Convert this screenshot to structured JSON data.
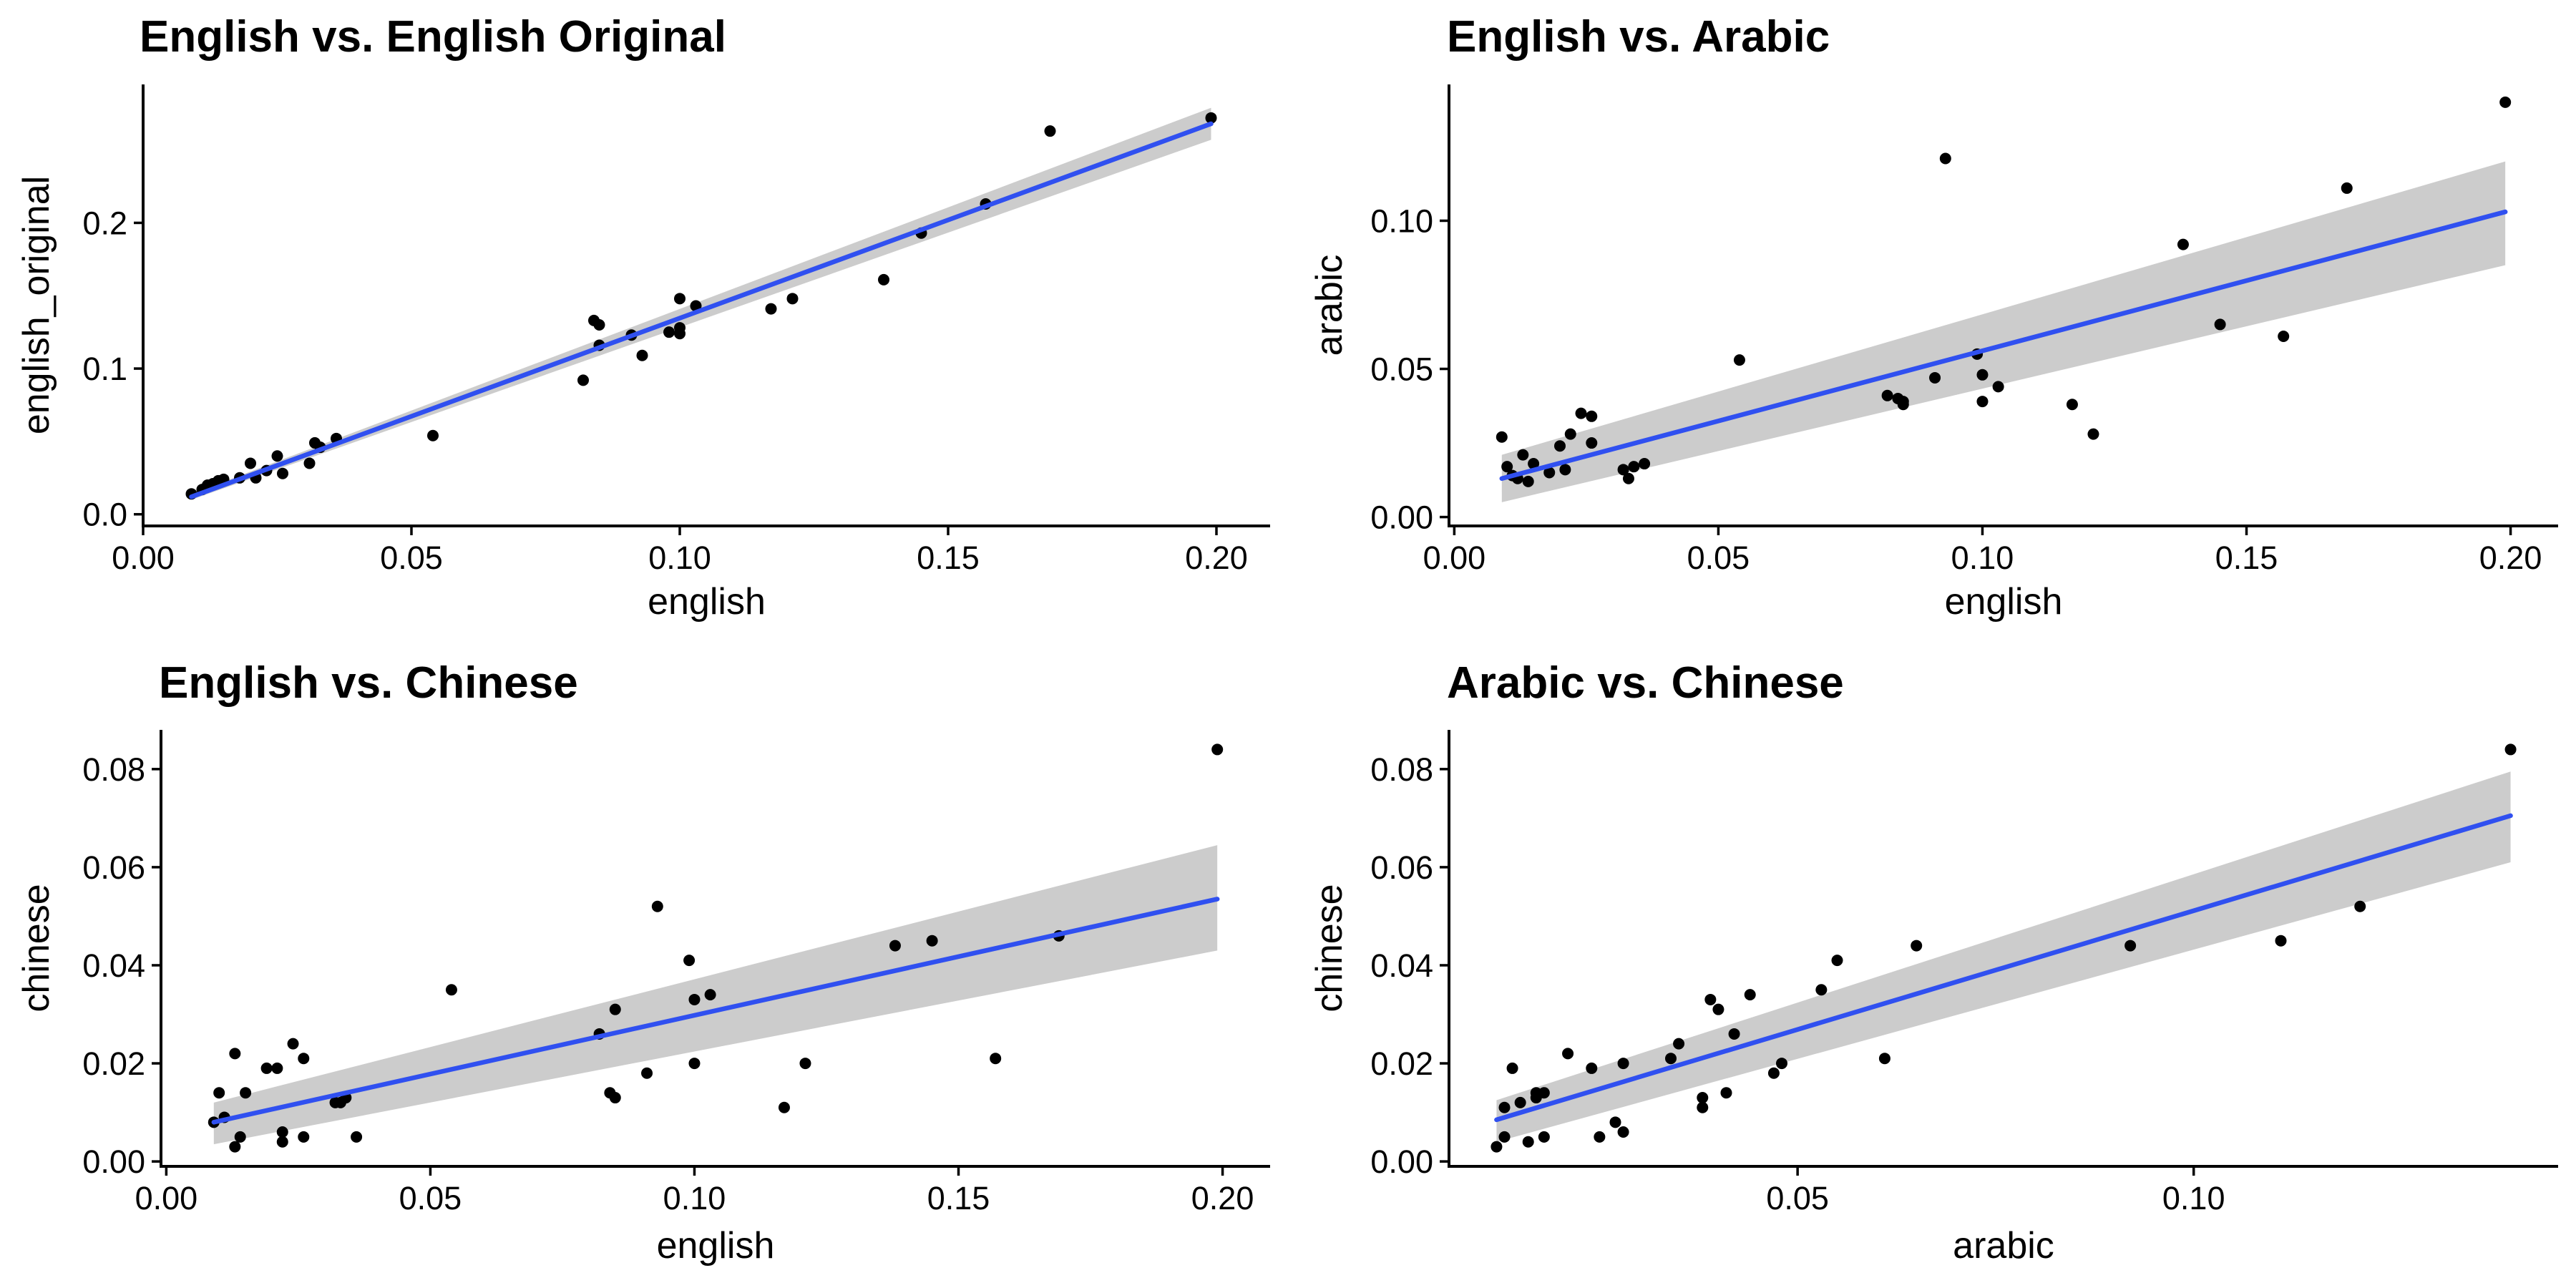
{
  "chart_data": [
    {
      "type": "scatter",
      "title": "English vs. English Original",
      "xlabel": "english",
      "ylabel": "english_original",
      "xlim": [
        0,
        0.21
      ],
      "ylim": [
        -0.008,
        0.295
      ],
      "xticks": [
        0,
        0.05,
        0.1,
        0.15,
        0.2
      ],
      "xtick_labels": [
        "0.00",
        "0.05",
        "0.10",
        "0.15",
        "0.20"
      ],
      "yticks": [
        0,
        0.1,
        0.2
      ],
      "ytick_labels": [
        "0.0",
        "0.1",
        "0.2"
      ],
      "fit": {
        "x0": 0.009,
        "y0": 0.012,
        "x1": 0.199,
        "y1": 0.268,
        "band_lo": [
          0.002,
          0.011
        ],
        "band_hi": [
          0.002,
          0.011
        ]
      },
      "points": {
        "x": [
          0.009,
          0.011,
          0.012,
          0.013,
          0.014,
          0.015,
          0.018,
          0.02,
          0.021,
          0.023,
          0.025,
          0.026,
          0.031,
          0.032,
          0.033,
          0.036,
          0.054,
          0.082,
          0.084,
          0.085,
          0.085,
          0.091,
          0.093,
          0.098,
          0.1,
          0.1,
          0.1,
          0.103,
          0.117,
          0.121,
          0.138,
          0.145,
          0.157,
          0.169,
          0.199
        ],
        "y": [
          0.014,
          0.017,
          0.02,
          0.021,
          0.023,
          0.024,
          0.025,
          0.035,
          0.025,
          0.03,
          0.04,
          0.028,
          0.035,
          0.049,
          0.046,
          0.052,
          0.054,
          0.092,
          0.133,
          0.116,
          0.13,
          0.123,
          0.109,
          0.125,
          0.148,
          0.128,
          0.124,
          0.143,
          0.141,
          0.148,
          0.161,
          0.193,
          0.213,
          0.263,
          0.272
        ]
      }
    },
    {
      "type": "scatter",
      "title": "English vs. Arabic",
      "xlabel": "english",
      "ylabel": "arabic",
      "xlim": [
        -0.001,
        0.209
      ],
      "ylim": [
        -0.003,
        0.146
      ],
      "xticks": [
        0,
        0.05,
        0.1,
        0.15,
        0.2
      ],
      "xtick_labels": [
        "0.00",
        "0.05",
        "0.10",
        "0.15",
        "0.20"
      ],
      "yticks": [
        0,
        0.05,
        0.1
      ],
      "ytick_labels": [
        "0.00",
        "0.05",
        "0.10"
      ],
      "fit": {
        "x0": 0.009,
        "y0": 0.013,
        "x1": 0.199,
        "y1": 0.103,
        "band_lo": [
          0.008,
          0.018
        ],
        "band_hi": [
          0.008,
          0.017
        ]
      },
      "points": {
        "x": [
          0.009,
          0.01,
          0.011,
          0.012,
          0.013,
          0.014,
          0.015,
          0.018,
          0.02,
          0.021,
          0.022,
          0.024,
          0.026,
          0.026,
          0.032,
          0.033,
          0.034,
          0.036,
          0.054,
          0.082,
          0.084,
          0.085,
          0.085,
          0.091,
          0.093,
          0.099,
          0.1,
          0.1,
          0.103,
          0.117,
          0.121,
          0.138,
          0.145,
          0.157,
          0.169,
          0.199
        ],
        "y": [
          0.027,
          0.017,
          0.014,
          0.013,
          0.021,
          0.012,
          0.018,
          0.015,
          0.024,
          0.016,
          0.028,
          0.035,
          0.025,
          0.034,
          0.016,
          0.013,
          0.017,
          0.018,
          0.053,
          0.041,
          0.04,
          0.038,
          0.039,
          0.047,
          0.121,
          0.055,
          0.048,
          0.039,
          0.044,
          0.038,
          0.028,
          0.092,
          0.065,
          0.061,
          0.111,
          0.14
        ]
      }
    },
    {
      "type": "scatter",
      "title": "English vs. Chinese",
      "xlabel": "english",
      "ylabel": "chinese",
      "xlim": [
        -0.001,
        0.209
      ],
      "ylim": [
        -0.001,
        0.088
      ],
      "xticks": [
        0,
        0.05,
        0.1,
        0.15,
        0.2
      ],
      "xtick_labels": [
        "0.00",
        "0.05",
        "0.10",
        "0.15",
        "0.20"
      ],
      "yticks": [
        0,
        0.02,
        0.04,
        0.06,
        0.08
      ],
      "ytick_labels": [
        "0.00",
        "0.02",
        "0.04",
        "0.06",
        "0.08"
      ],
      "fit": {
        "x0": 0.009,
        "y0": 0.008,
        "x1": 0.199,
        "y1": 0.0535,
        "band_lo": [
          0.0045,
          0.0105
        ],
        "band_hi": [
          0.004,
          0.011
        ]
      },
      "points": {
        "x": [
          0.009,
          0.01,
          0.011,
          0.013,
          0.013,
          0.014,
          0.015,
          0.019,
          0.021,
          0.022,
          0.022,
          0.024,
          0.026,
          0.026,
          0.032,
          0.033,
          0.034,
          0.036,
          0.054,
          0.082,
          0.084,
          0.085,
          0.085,
          0.091,
          0.093,
          0.099,
          0.1,
          0.1,
          0.103,
          0.117,
          0.121,
          0.138,
          0.145,
          0.157,
          0.169,
          0.199
        ],
        "y": [
          0.008,
          0.014,
          0.009,
          0.003,
          0.022,
          0.005,
          0.014,
          0.019,
          0.019,
          0.004,
          0.006,
          0.024,
          0.005,
          0.021,
          0.012,
          0.012,
          0.013,
          0.005,
          0.035,
          0.026,
          0.014,
          0.031,
          0.013,
          0.018,
          0.052,
          0.041,
          0.02,
          0.033,
          0.034,
          0.011,
          0.02,
          0.044,
          0.045,
          0.021,
          0.046,
          0.084
        ]
      }
    },
    {
      "type": "scatter",
      "title": "Arabic vs. Chinese",
      "xlabel": "arabic",
      "ylabel": "chinese",
      "xlim": [
        0.006,
        0.146
      ],
      "ylim": [
        -0.001,
        0.088
      ],
      "xticks": [
        0.05,
        0.1
      ],
      "xtick_labels": [
        "0.05",
        "0.10"
      ],
      "yticks": [
        0,
        0.02,
        0.04,
        0.06,
        0.08
      ],
      "ytick_labels": [
        "0.00",
        "0.02",
        "0.04",
        "0.06",
        "0.08"
      ],
      "fit": {
        "x0": 0.012,
        "y0": 0.0085,
        "x1": 0.14,
        "y1": 0.0705,
        "band_lo": [
          0.0045,
          0.0095
        ],
        "band_hi": [
          0.004,
          0.009
        ]
      },
      "points": {
        "x": [
          0.012,
          0.013,
          0.013,
          0.014,
          0.015,
          0.016,
          0.017,
          0.017,
          0.018,
          0.018,
          0.021,
          0.024,
          0.025,
          0.027,
          0.028,
          0.028,
          0.034,
          0.035,
          0.038,
          0.038,
          0.039,
          0.04,
          0.041,
          0.042,
          0.044,
          0.047,
          0.048,
          0.053,
          0.055,
          0.061,
          0.065,
          0.092,
          0.111,
          0.121,
          0.14
        ],
        "y": [
          0.003,
          0.005,
          0.011,
          0.019,
          0.012,
          0.004,
          0.014,
          0.013,
          0.005,
          0.014,
          0.022,
          0.019,
          0.005,
          0.008,
          0.006,
          0.02,
          0.021,
          0.024,
          0.011,
          0.013,
          0.033,
          0.031,
          0.014,
          0.026,
          0.034,
          0.018,
          0.02,
          0.035,
          0.041,
          0.021,
          0.044,
          0.044,
          0.045,
          0.052,
          0.084
        ]
      }
    }
  ]
}
